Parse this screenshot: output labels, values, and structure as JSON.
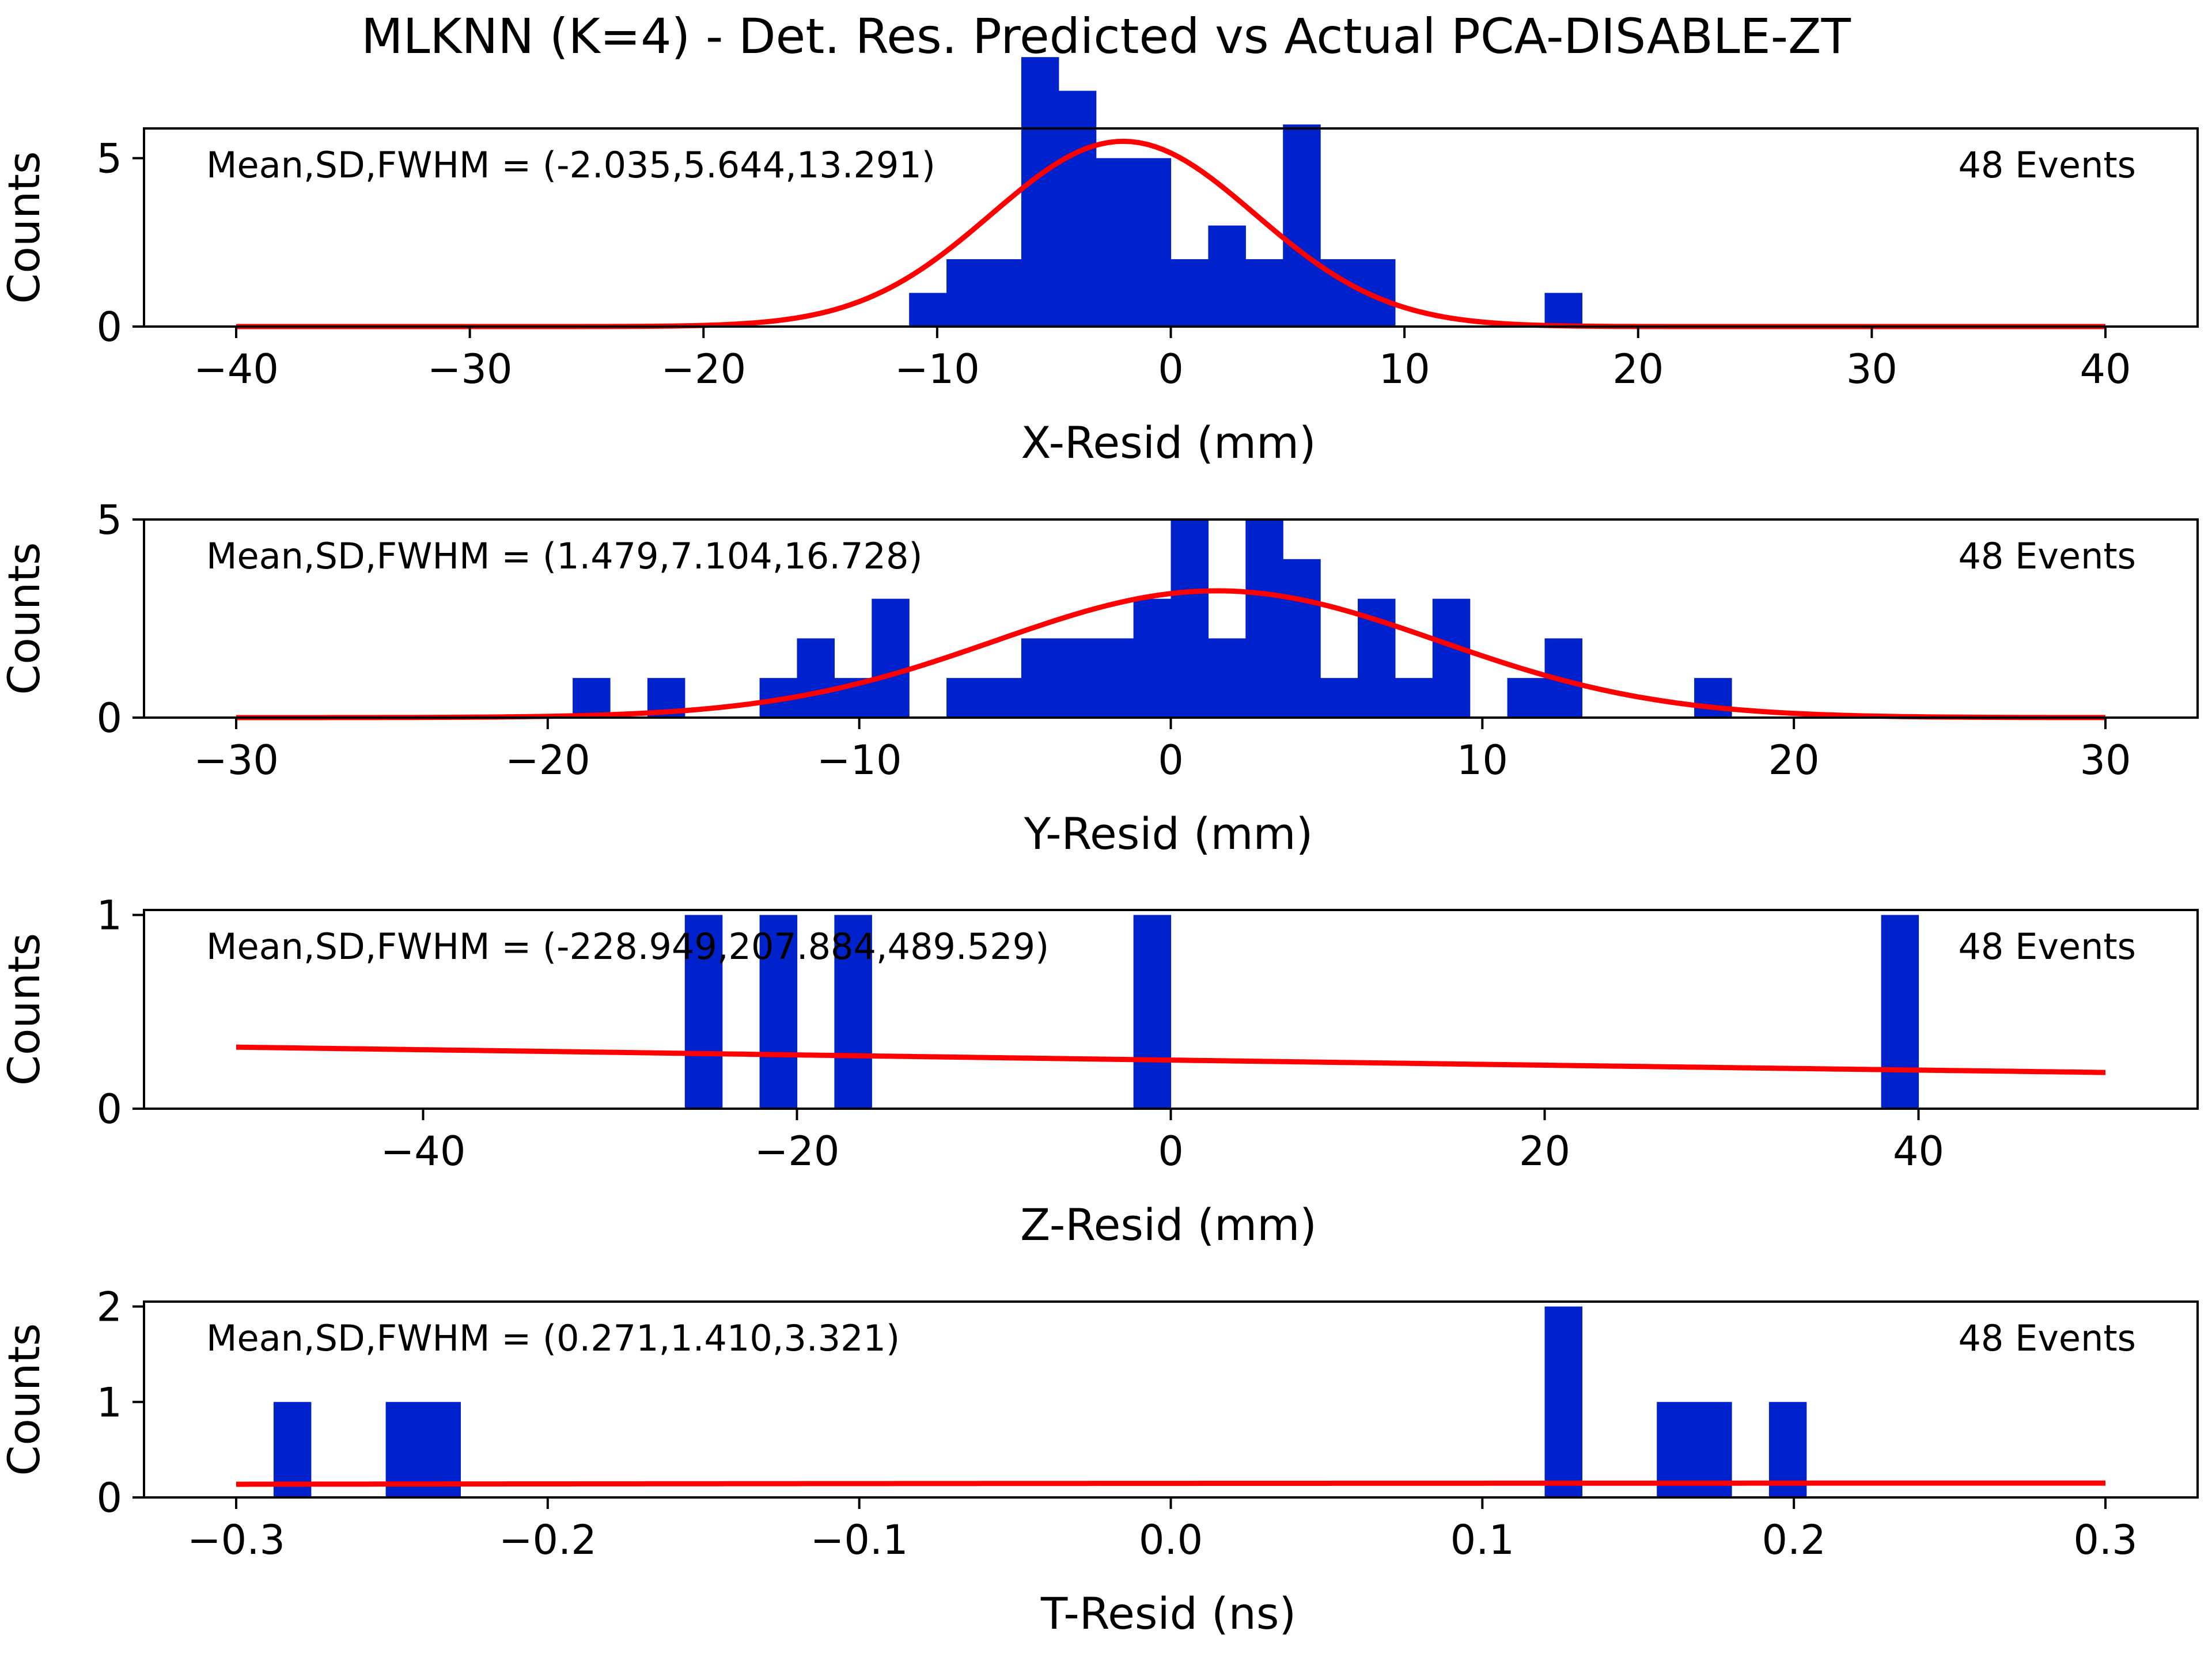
{
  "figure": {
    "title": "MLKNN (K=4) - Det. Res. Predicted vs Actual PCA-DISABLE-ZT"
  },
  "style": {
    "bar_color": "#0022cc",
    "fit_color": "#ff0000",
    "axis_color": "#000000",
    "background": "#ffffff"
  },
  "chart_data": [
    {
      "type": "bar",
      "xlabel": "X-Resid (mm)",
      "ylabel": "Counts",
      "annotation": "Mean,SD,FWHM = (-2.035,5.644,13.291)",
      "events_label": "48 Events",
      "xlim": [
        -40,
        40
      ],
      "ylim": [
        0,
        8
      ],
      "xticks": [
        -40,
        -30,
        -20,
        -10,
        0,
        10,
        20,
        30,
        40
      ],
      "xtick_labels": [
        "−40",
        "−30",
        "−20",
        "−10",
        "0",
        "10",
        "20",
        "30",
        "40"
      ],
      "yticks": [
        0,
        5
      ],
      "ytick_labels": [
        "0",
        "5"
      ],
      "bin_width": 1.6,
      "bins": [
        {
          "x": -11.2,
          "count": 1
        },
        {
          "x": -9.6,
          "count": 2
        },
        {
          "x": -8.0,
          "count": 2
        },
        {
          "x": -6.4,
          "count": 8
        },
        {
          "x": -4.8,
          "count": 7
        },
        {
          "x": -3.2,
          "count": 5
        },
        {
          "x": -1.6,
          "count": 5
        },
        {
          "x": 0.0,
          "count": 2
        },
        {
          "x": 1.6,
          "count": 3
        },
        {
          "x": 3.2,
          "count": 2
        },
        {
          "x": 4.8,
          "count": 6
        },
        {
          "x": 6.4,
          "count": 2
        },
        {
          "x": 8.0,
          "count": 2
        },
        {
          "x": 16.0,
          "count": 1
        }
      ],
      "fit": {
        "mean": -2.035,
        "sigma": 5.644,
        "amplitude": 5.5,
        "range": [
          -40,
          40
        ]
      }
    },
    {
      "type": "bar",
      "xlabel": "Y-Resid (mm)",
      "ylabel": "Counts",
      "annotation": "Mean,SD,FWHM = (1.479,7.104,16.728)",
      "events_label": "48 Events",
      "xlim": [
        -30,
        30
      ],
      "ylim": [
        0,
        5
      ],
      "xticks": [
        -30,
        -20,
        -10,
        0,
        10,
        20,
        30
      ],
      "xtick_labels": [
        "−30",
        "−20",
        "−10",
        "0",
        "10",
        "20",
        "30"
      ],
      "yticks": [
        0,
        5
      ],
      "ytick_labels": [
        "0",
        "5"
      ],
      "bin_width": 1.2,
      "bins": [
        {
          "x": -19.2,
          "count": 1
        },
        {
          "x": -16.8,
          "count": 1
        },
        {
          "x": -13.2,
          "count": 1
        },
        {
          "x": -12.0,
          "count": 2
        },
        {
          "x": -10.8,
          "count": 1
        },
        {
          "x": -9.6,
          "count": 3
        },
        {
          "x": -7.2,
          "count": 1
        },
        {
          "x": -6.0,
          "count": 1
        },
        {
          "x": -4.8,
          "count": 2
        },
        {
          "x": -3.6,
          "count": 2
        },
        {
          "x": -2.4,
          "count": 2
        },
        {
          "x": -1.2,
          "count": 3
        },
        {
          "x": 0.0,
          "count": 5
        },
        {
          "x": 1.2,
          "count": 2
        },
        {
          "x": 2.4,
          "count": 5
        },
        {
          "x": 3.6,
          "count": 4
        },
        {
          "x": 4.8,
          "count": 1
        },
        {
          "x": 6.0,
          "count": 3
        },
        {
          "x": 7.2,
          "count": 1
        },
        {
          "x": 8.4,
          "count": 3
        },
        {
          "x": 10.8,
          "count": 1
        },
        {
          "x": 12.0,
          "count": 2
        },
        {
          "x": 16.8,
          "count": 1
        }
      ],
      "fit": {
        "mean": 1.479,
        "sigma": 7.104,
        "amplitude": 3.2,
        "range": [
          -30,
          30
        ]
      }
    },
    {
      "type": "bar",
      "xlabel": "Z-Resid (mm)",
      "ylabel": "Counts",
      "annotation": "Mean,SD,FWHM = (-228.949,207.884,489.529)",
      "events_label": "48 Events",
      "xlim": [
        -50,
        50
      ],
      "ylim": [
        0,
        1
      ],
      "xticks": [
        -40,
        -20,
        0,
        20,
        40
      ],
      "xtick_labels": [
        "−40",
        "−20",
        "0",
        "20",
        "40"
      ],
      "yticks": [
        0,
        1
      ],
      "ytick_labels": [
        "0",
        "1"
      ],
      "bin_width": 2.0,
      "bins": [
        {
          "x": -26.0,
          "count": 1
        },
        {
          "x": -22.0,
          "count": 1
        },
        {
          "x": -18.0,
          "count": 1
        },
        {
          "x": -2.0,
          "count": 1
        },
        {
          "x": 38.0,
          "count": 1
        }
      ],
      "fit": {
        "mean": -228.949,
        "sigma": 207.884,
        "amplitude": 0.46,
        "range": [
          -50,
          50
        ]
      }
    },
    {
      "type": "bar",
      "xlabel": "T-Resid (ns)",
      "ylabel": "Counts",
      "annotation": "Mean,SD,FWHM = (0.271,1.410,3.321)",
      "events_label": "48 Events",
      "xlim": [
        -0.3,
        0.3
      ],
      "ylim": [
        0,
        2
      ],
      "xticks": [
        -0.3,
        -0.2,
        -0.1,
        0.0,
        0.1,
        0.2,
        0.3
      ],
      "xtick_labels": [
        "−0.3",
        "−0.2",
        "−0.1",
        "0.0",
        "0.1",
        "0.2",
        "0.3"
      ],
      "yticks": [
        0,
        1,
        2
      ],
      "ytick_labels": [
        "0",
        "1",
        "2"
      ],
      "bin_width": 0.012,
      "bins": [
        {
          "x": -0.288,
          "count": 1
        },
        {
          "x": -0.252,
          "count": 1
        },
        {
          "x": -0.24,
          "count": 1
        },
        {
          "x": 0.12,
          "count": 2
        },
        {
          "x": 0.156,
          "count": 1
        },
        {
          "x": 0.168,
          "count": 1
        },
        {
          "x": 0.192,
          "count": 1
        }
      ],
      "fit": {
        "mean": 0.271,
        "sigma": 1.41,
        "amplitude": 0.15,
        "range": [
          -0.3,
          0.3
        ]
      }
    }
  ]
}
